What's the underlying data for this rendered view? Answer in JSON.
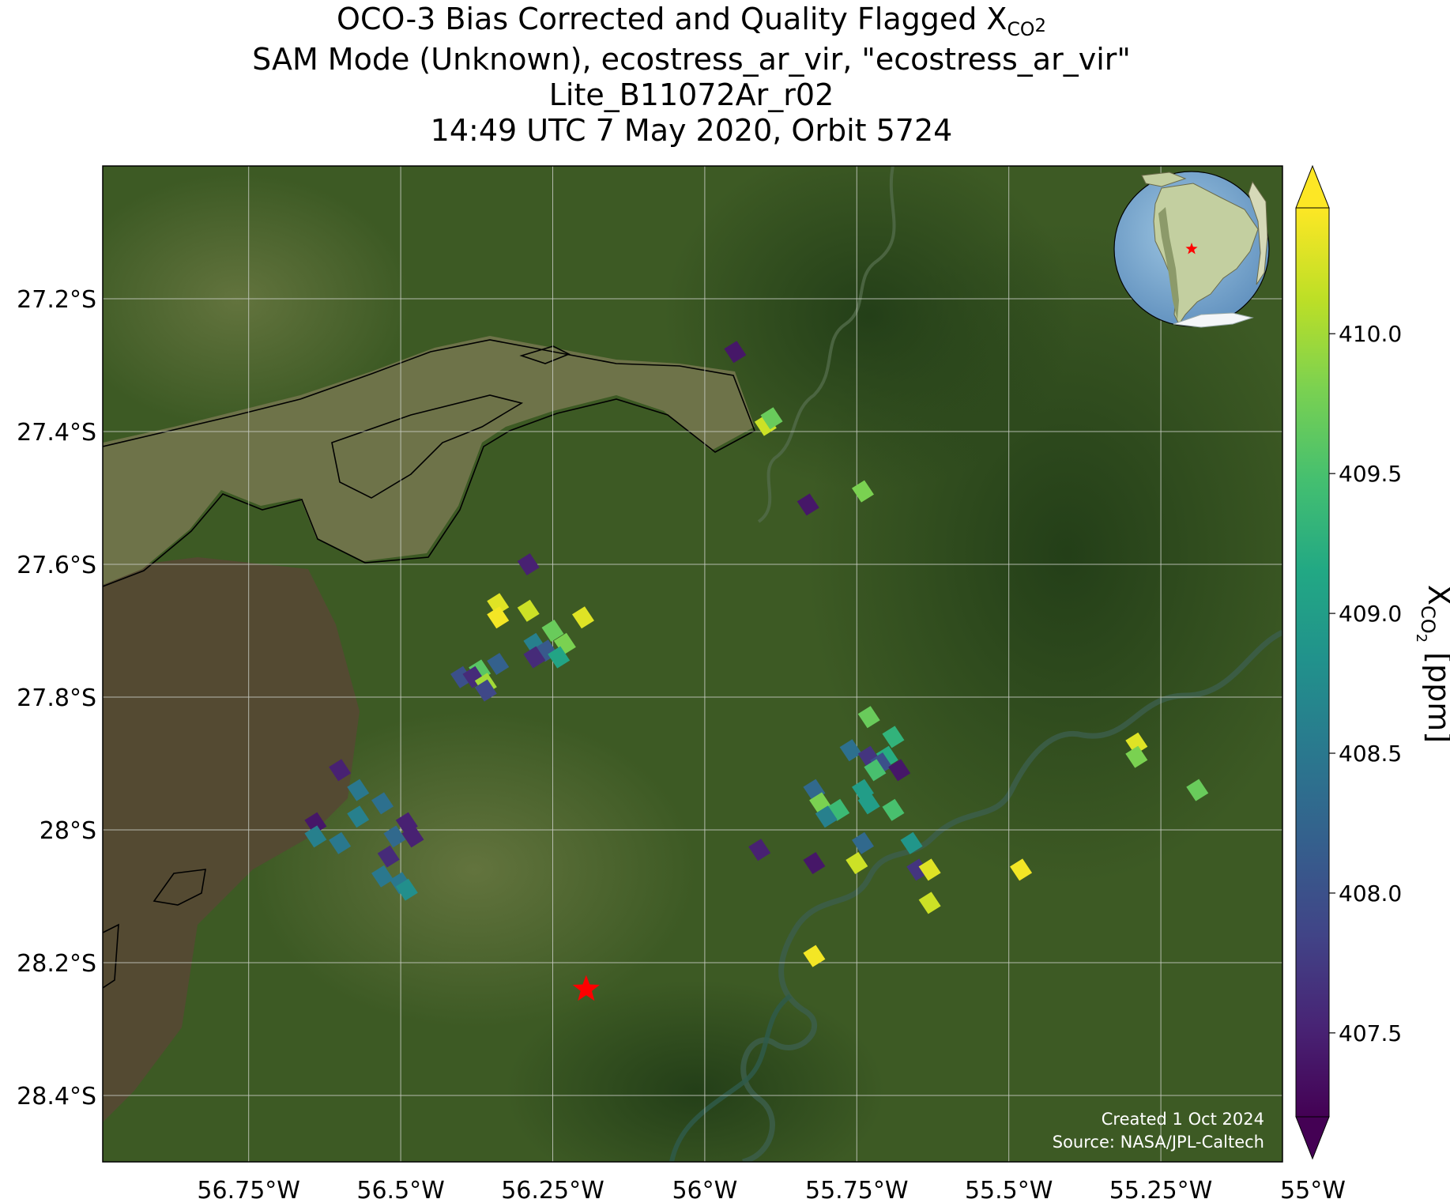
{
  "title": {
    "line1_main": "OCO-3 Bias Corrected and Quality Flagged X",
    "line1_sub": "CO",
    "line1_sub2": "2",
    "line2": "SAM Mode (Unknown), ecostress_ar_vir, \"ecostress_ar_vir\"",
    "line3": "Lite_B11072Ar_r02",
    "line4": "14:49 UTC 7 May 2020, Orbit 5724"
  },
  "credits": {
    "created": "Created 1 Oct 2024",
    "source": "Source: NASA/JPL-Caltech"
  },
  "colors": {
    "land": "#3d5a24",
    "river": "#6e7349",
    "wetland": "#544a32",
    "grid": "#c8ccc4",
    "target_star": "#ff0000",
    "contour": "#000000"
  },
  "map": {
    "lon_range": [
      -56.99,
      -55.05
    ],
    "lat_range": [
      -28.5,
      -27.0
    ],
    "x_ticks": [
      "56.75°W",
      "56.5°W",
      "56.25°W",
      "56°W",
      "55.75°W",
      "55.5°W",
      "55.25°W",
      "55°W"
    ],
    "x_tick_values": [
      -56.75,
      -56.5,
      -56.25,
      -56.0,
      -55.75,
      -55.5,
      -55.25,
      -55.0
    ],
    "y_ticks": [
      "27.2°S",
      "27.4°S",
      "27.6°S",
      "27.8°S",
      "28°S",
      "28.2°S",
      "28.4°S"
    ],
    "y_tick_values": [
      -27.2,
      -27.4,
      -27.6,
      -27.8,
      -28.0,
      -28.2,
      -28.4
    ],
    "target": {
      "lon": -56.195,
      "lat": -28.24
    },
    "inset_globe": {
      "target_icon": "red-star-icon"
    }
  },
  "colorbar": {
    "label_main": "X",
    "label_sub": "CO",
    "label_sub2": "2",
    "label_unit": " [ppm]",
    "min": 407.2,
    "max": 410.45,
    "colormap": "viridis",
    "extend": "both",
    "ticks": [
      {
        "value": 407.5,
        "label": "407.5"
      },
      {
        "value": 408.0,
        "label": "408.0"
      },
      {
        "value": 408.5,
        "label": "408.5"
      },
      {
        "value": 409.0,
        "label": "409.0"
      },
      {
        "value": 409.5,
        "label": "409.5"
      },
      {
        "value": 410.0,
        "label": "410.0"
      }
    ]
  },
  "chart_data": {
    "type": "scatter",
    "x_label": "longitude",
    "y_label": "latitude",
    "value_label": "XCO2 [ppm]",
    "points": [
      {
        "lon": -55.95,
        "lat": -27.28,
        "xco2": 407.4
      },
      {
        "lon": -55.9,
        "lat": -27.39,
        "xco2": 410.2
      },
      {
        "lon": -55.89,
        "lat": -27.38,
        "xco2": 409.7
      },
      {
        "lon": -55.83,
        "lat": -27.51,
        "xco2": 407.4
      },
      {
        "lon": -55.74,
        "lat": -27.49,
        "xco2": 409.8
      },
      {
        "lon": -56.29,
        "lat": -27.6,
        "xco2": 407.5
      },
      {
        "lon": -56.34,
        "lat": -27.66,
        "xco2": 410.3
      },
      {
        "lon": -56.29,
        "lat": -27.67,
        "xco2": 410.2
      },
      {
        "lon": -56.34,
        "lat": -27.68,
        "xco2": 410.4
      },
      {
        "lon": -56.2,
        "lat": -27.68,
        "xco2": 410.3
      },
      {
        "lon": -56.25,
        "lat": -27.7,
        "xco2": 409.7
      },
      {
        "lon": -56.23,
        "lat": -27.72,
        "xco2": 409.8
      },
      {
        "lon": -56.28,
        "lat": -27.72,
        "xco2": 408.6
      },
      {
        "lon": -56.26,
        "lat": -27.73,
        "xco2": 408.1
      },
      {
        "lon": -56.24,
        "lat": -27.74,
        "xco2": 409.1
      },
      {
        "lon": -56.28,
        "lat": -27.74,
        "xco2": 407.6
      },
      {
        "lon": -56.34,
        "lat": -27.75,
        "xco2": 408.2
      },
      {
        "lon": -56.37,
        "lat": -27.76,
        "xco2": 409.6
      },
      {
        "lon": -56.4,
        "lat": -27.77,
        "xco2": 408.0
      },
      {
        "lon": -56.38,
        "lat": -27.77,
        "xco2": 407.6
      },
      {
        "lon": -56.36,
        "lat": -27.78,
        "xco2": 410.0
      },
      {
        "lon": -56.36,
        "lat": -27.79,
        "xco2": 407.9
      },
      {
        "lon": -56.6,
        "lat": -27.91,
        "xco2": 407.5
      },
      {
        "lon": -56.57,
        "lat": -27.94,
        "xco2": 408.5
      },
      {
        "lon": -56.53,
        "lat": -27.96,
        "xco2": 408.4
      },
      {
        "lon": -56.57,
        "lat": -27.98,
        "xco2": 408.6
      },
      {
        "lon": -56.49,
        "lat": -27.99,
        "xco2": 407.5
      },
      {
        "lon": -56.64,
        "lat": -27.99,
        "xco2": 407.4
      },
      {
        "lon": -56.51,
        "lat": -28.01,
        "xco2": 408.3
      },
      {
        "lon": -56.48,
        "lat": -28.01,
        "xco2": 407.5
      },
      {
        "lon": -56.6,
        "lat": -28.02,
        "xco2": 408.5
      },
      {
        "lon": -56.64,
        "lat": -28.01,
        "xco2": 408.6
      },
      {
        "lon": -56.52,
        "lat": -28.04,
        "xco2": 407.6
      },
      {
        "lon": -56.53,
        "lat": -28.07,
        "xco2": 408.5
      },
      {
        "lon": -56.5,
        "lat": -28.08,
        "xco2": 408.5
      },
      {
        "lon": -56.49,
        "lat": -28.09,
        "xco2": 408.8
      },
      {
        "lon": -55.73,
        "lat": -27.83,
        "xco2": 409.7
      },
      {
        "lon": -55.69,
        "lat": -27.86,
        "xco2": 409.3
      },
      {
        "lon": -55.76,
        "lat": -27.88,
        "xco2": 408.4
      },
      {
        "lon": -55.7,
        "lat": -27.89,
        "xco2": 409.2
      },
      {
        "lon": -55.73,
        "lat": -27.89,
        "xco2": 407.7
      },
      {
        "lon": -55.71,
        "lat": -27.9,
        "xco2": 408.0
      },
      {
        "lon": -55.72,
        "lat": -27.91,
        "xco2": 409.5
      },
      {
        "lon": -55.68,
        "lat": -27.91,
        "xco2": 407.4
      },
      {
        "lon": -55.82,
        "lat": -27.94,
        "xco2": 408.3
      },
      {
        "lon": -55.74,
        "lat": -27.94,
        "xco2": 409.0
      },
      {
        "lon": -55.73,
        "lat": -27.96,
        "xco2": 409.0
      },
      {
        "lon": -55.81,
        "lat": -27.96,
        "xco2": 409.8
      },
      {
        "lon": -55.78,
        "lat": -27.97,
        "xco2": 409.4
      },
      {
        "lon": -55.8,
        "lat": -27.98,
        "xco2": 408.6
      },
      {
        "lon": -55.69,
        "lat": -27.97,
        "xco2": 409.5
      },
      {
        "lon": -55.91,
        "lat": -28.03,
        "xco2": 407.5
      },
      {
        "lon": -55.74,
        "lat": -28.02,
        "xco2": 408.3
      },
      {
        "lon": -55.66,
        "lat": -28.02,
        "xco2": 408.9
      },
      {
        "lon": -55.75,
        "lat": -28.05,
        "xco2": 410.2
      },
      {
        "lon": -55.82,
        "lat": -28.05,
        "xco2": 407.4
      },
      {
        "lon": -55.65,
        "lat": -28.06,
        "xco2": 407.7
      },
      {
        "lon": -55.63,
        "lat": -28.06,
        "xco2": 410.3
      },
      {
        "lon": -55.63,
        "lat": -28.11,
        "xco2": 410.2
      },
      {
        "lon": -55.48,
        "lat": -28.06,
        "xco2": 410.4
      },
      {
        "lon": -55.29,
        "lat": -27.87,
        "xco2": 410.3
      },
      {
        "lon": -55.29,
        "lat": -27.89,
        "xco2": 409.8
      },
      {
        "lon": -55.19,
        "lat": -27.94,
        "xco2": 409.7
      },
      {
        "lon": -55.82,
        "lat": -28.19,
        "xco2": 410.4
      }
    ]
  }
}
